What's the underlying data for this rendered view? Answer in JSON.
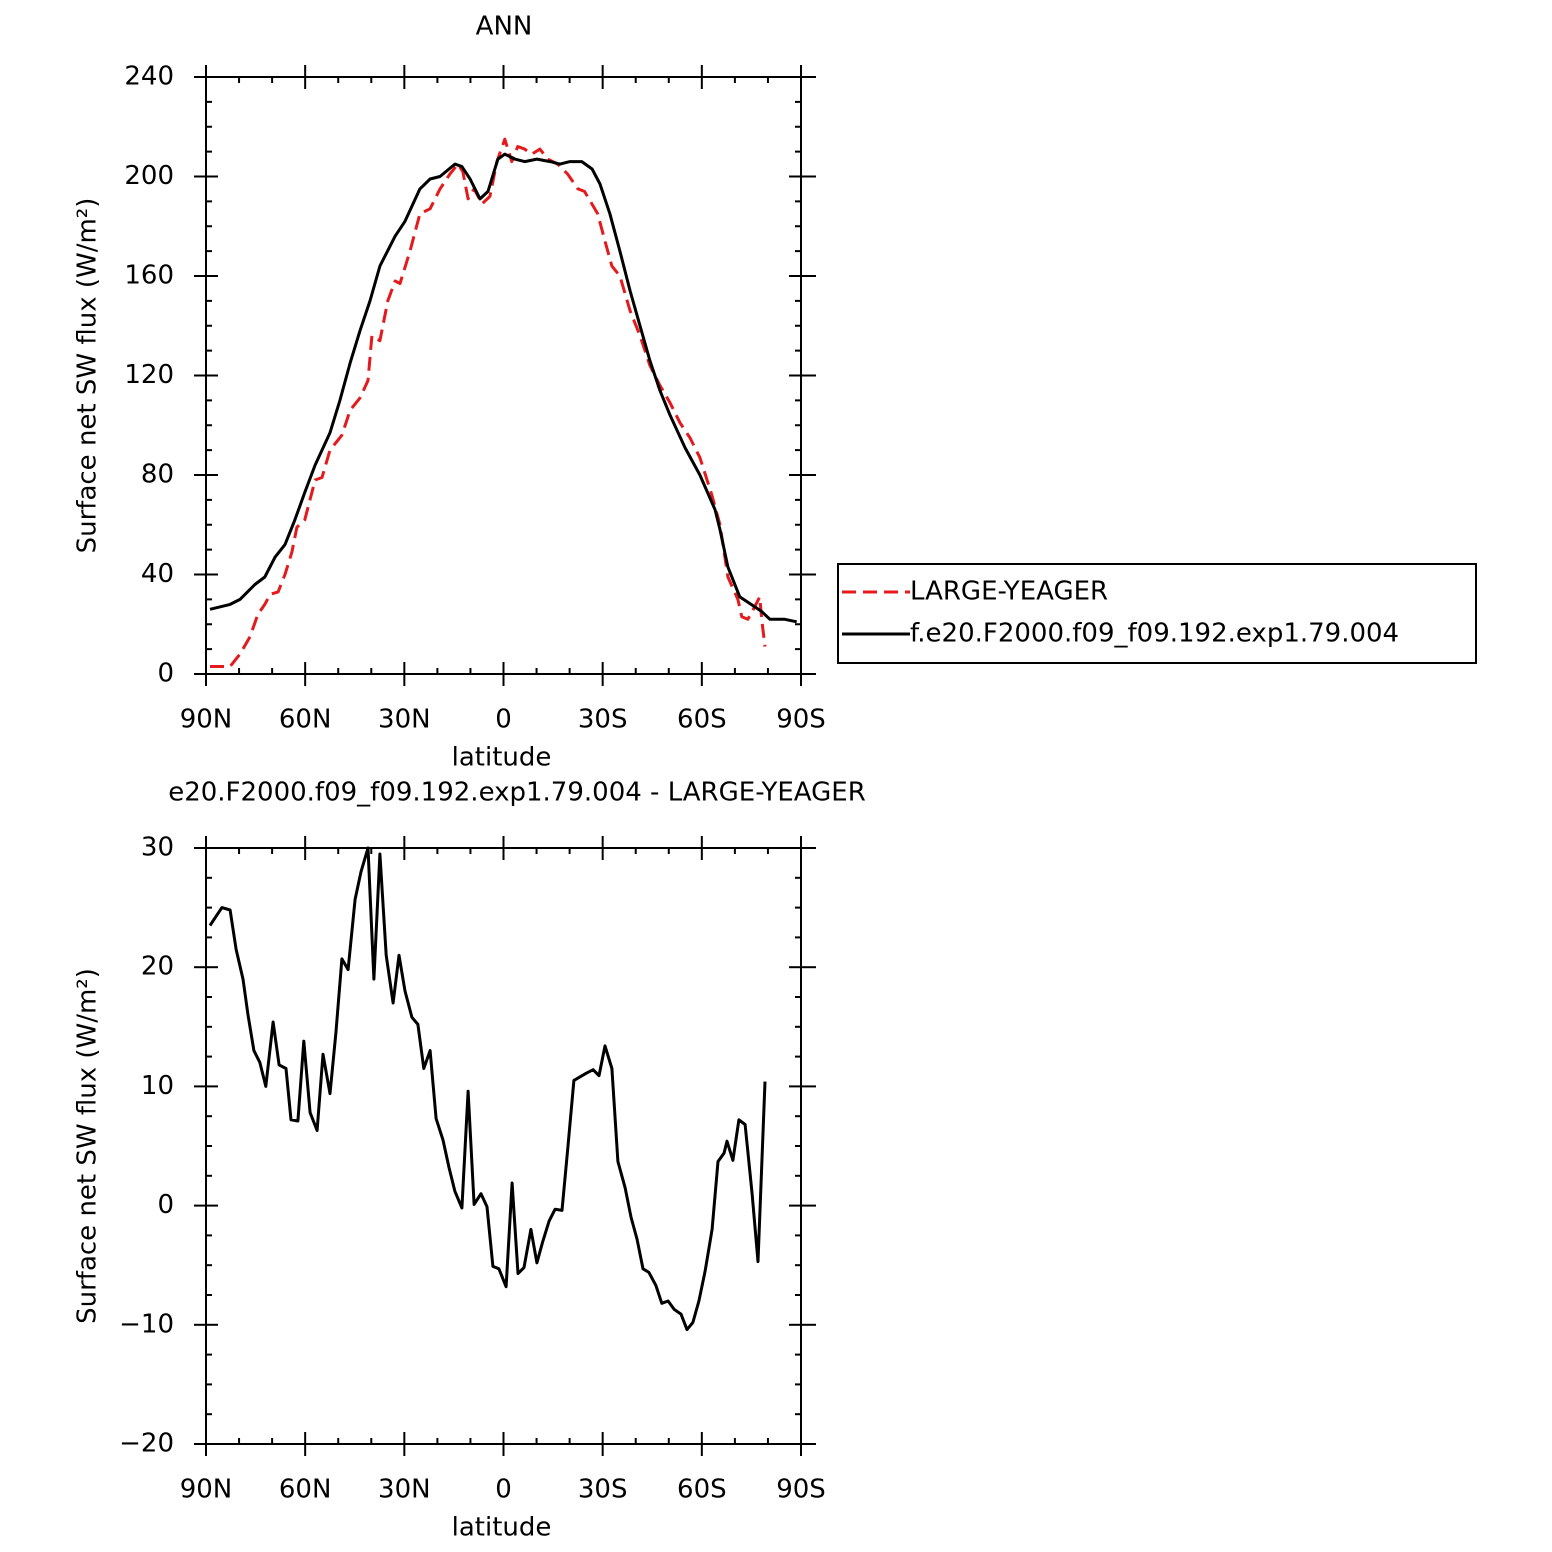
{
  "chart_data": [
    {
      "type": "line",
      "title": "ANN",
      "xlabel": "latitude",
      "ylabel": "Surface net SW flux (W/m²)",
      "xlim": [
        90,
        -90
      ],
      "xticks": [
        {
          "value": 90,
          "label": "90N"
        },
        {
          "value": 60,
          "label": "60N"
        },
        {
          "value": 30,
          "label": "30N"
        },
        0,
        {
          "value": -30,
          "label": "30S"
        },
        {
          "value": -60,
          "label": "60S"
        },
        {
          "value": -90,
          "label": "90S"
        }
      ],
      "ylim": [
        0,
        240
      ],
      "yticks": [
        0,
        40,
        80,
        120,
        160,
        200,
        240
      ],
      "legend": "right",
      "series": [
        {
          "name": "LARGE-YEAGER",
          "color": "#e41a1c",
          "dashed": true,
          "x": [
            88.8,
            82.7,
            79.7,
            76.7,
            74.3,
            72.2,
            70.6,
            68.2,
            66.1,
            64.0,
            62.5,
            60.1,
            57.0,
            54.9,
            52.5,
            48.9,
            46.4,
            43.4,
            41.0,
            39.8,
            37.4,
            35.0,
            32.8,
            31.3,
            28.3,
            25.3,
            22.2,
            19.2,
            16.2,
            13.8,
            12.3,
            10.7,
            8.9,
            6.5,
            4.1,
            2.0,
            -0.4,
            -2.5,
            -4.3,
            -6.4,
            -8.6,
            -11.0,
            -13.4,
            -16.4,
            -19.4,
            -22.5,
            -24.5,
            -28.5,
            -30.7,
            -32.8,
            -35.2,
            -38.3,
            -41.3,
            -44.3,
            -47.3,
            -50.4,
            -53.4,
            -56.4,
            -59.4,
            -63.0,
            -65.5,
            -67.9,
            -70.9,
            -72.1,
            -73.9,
            -76.0,
            -77.5,
            -78.2,
            -79.1
          ],
          "values": [
            3,
            3,
            8,
            15,
            24,
            28,
            32,
            33,
            40,
            49,
            59,
            62,
            78,
            79,
            90,
            96,
            106,
            111,
            118,
            136,
            134,
            150,
            158,
            157,
            170,
            185,
            187,
            195,
            201,
            205,
            202,
            191,
            195,
            189,
            192,
            206,
            215,
            206,
            212,
            211,
            209,
            211,
            207,
            205,
            201,
            195,
            194,
            185,
            174,
            164,
            160,
            146,
            136,
            124,
            116,
            109,
            101,
            95,
            87,
            72,
            60,
            39,
            30,
            23,
            22,
            27,
            31,
            21,
            11
          ]
        },
        {
          "name": "f.e20.F2000.f09_f09.192.exp1.79.004",
          "color": "#000000",
          "dashed": false,
          "x": [
            88.8,
            82.7,
            79.7,
            75.2,
            72.2,
            69.1,
            66.1,
            63.1,
            60.1,
            57.0,
            52.5,
            49.5,
            46.4,
            43.4,
            40.4,
            37.4,
            32.8,
            29.8,
            25.3,
            22.2,
            19.2,
            14.7,
            12.6,
            10.1,
            7.1,
            4.7,
            1.7,
            -0.4,
            -3.4,
            -6.4,
            -10.1,
            -14.1,
            -17.1,
            -20.1,
            -23.7,
            -26.8,
            -29.2,
            -32.2,
            -35.2,
            -38.3,
            -41.3,
            -44.3,
            -47.3,
            -50.4,
            -54.9,
            -59.4,
            -64.0,
            -65.5,
            -67.9,
            -71.5,
            -76.0,
            -78.2,
            -80.6,
            -85.1,
            -88.7
          ],
          "values": [
            26,
            28,
            30,
            36,
            39,
            47,
            52,
            62,
            73,
            84,
            97,
            110,
            125,
            138,
            150,
            164,
            176,
            182,
            195,
            199,
            200,
            205,
            204,
            199,
            191,
            194,
            207,
            209,
            207,
            206,
            207,
            206,
            205,
            206,
            206,
            203,
            197,
            185,
            170,
            154,
            140,
            126,
            114,
            104,
            91,
            80,
            66,
            58,
            43,
            31,
            27,
            25,
            22,
            22,
            21
          ]
        }
      ]
    },
    {
      "type": "line",
      "title": "e20.F2000.f09_f09.192.exp1.79.004 - LARGE-YEAGER",
      "xlabel": "latitude",
      "ylabel": "Surface net SW flux (W/m²)",
      "xlim": [
        90,
        -90
      ],
      "xticks": [
        {
          "value": 90,
          "label": "90N"
        },
        {
          "value": 60,
          "label": "60N"
        },
        {
          "value": 30,
          "label": "30N"
        },
        0,
        {
          "value": -30,
          "label": "30S"
        },
        {
          "value": -60,
          "label": "60S"
        },
        {
          "value": -90,
          "label": "90S"
        }
      ],
      "ylim": [
        -20,
        30
      ],
      "yticks": [
        {
          "value": -20,
          "label": "−20"
        },
        {
          "value": -10,
          "label": "−10"
        },
        0,
        10,
        20,
        30
      ],
      "series": [
        {
          "color": "#000000",
          "dashed": false,
          "x": [
            88.8,
            85.2,
            82.7,
            80.9,
            78.8,
            77.3,
            75.5,
            73.7,
            71.9,
            69.7,
            67.9,
            65.8,
            64.3,
            62.2,
            60.4,
            58.5,
            56.4,
            54.6,
            52.5,
            50.7,
            48.9,
            47.0,
            44.9,
            43.1,
            41.0,
            39.2,
            37.4,
            35.5,
            33.4,
            31.6,
            29.8,
            27.7,
            25.9,
            24.1,
            22.2,
            20.4,
            18.3,
            16.5,
            14.7,
            12.6,
            10.7,
            8.9,
            6.8,
            5.0,
            3.2,
            1.4,
            -0.8,
            -2.6,
            -4.4,
            -6.2,
            -8.3,
            -10.1,
            -11.9,
            -13.8,
            -15.6,
            -17.7,
            -19.5,
            -21.3,
            -23.1,
            -25.0,
            -27.1,
            -28.9,
            -30.7,
            -32.8,
            -34.6,
            -36.8,
            -38.6,
            -40.4,
            -42.2,
            -44.0,
            -46.1,
            -47.9,
            -49.8,
            -51.6,
            -53.7,
            -55.5,
            -57.3,
            -59.1,
            -61.0,
            -63.1,
            -64.9,
            -66.7,
            -67.6,
            -69.4,
            -71.2,
            -73.1,
            -75.2,
            -77.0,
            -79.1
          ],
          "values": [
            23.5,
            25,
            24.8,
            21.5,
            19,
            16,
            13,
            12,
            10,
            15.4,
            11.8,
            11.5,
            7.2,
            7.1,
            13.8,
            7.8,
            6.3,
            12.7,
            9.4,
            14.5,
            20.7,
            19.8,
            25.7,
            28,
            30,
            19,
            29.5,
            21,
            17,
            21,
            18,
            15.8,
            15.2,
            11.5,
            13,
            7.3,
            5.5,
            3.2,
            1.2,
            -0.2,
            9.6,
            0.1,
            1,
            -0.1,
            -5.1,
            -5.3,
            -6.8,
            1.9,
            -5.7,
            -5.2,
            -2,
            -4.8,
            -3,
            -1.3,
            -0.3,
            -0.4,
            5,
            10.5,
            10.8,
            11.1,
            11.4,
            10.9,
            13.4,
            11.5,
            3.7,
            1.5,
            -1,
            -2.8,
            -5.3,
            -5.6,
            -6.7,
            -8.2,
            -8,
            -8.7,
            -9.1,
            -10.4,
            -9.8,
            -8,
            -5.5,
            -2,
            3.7,
            4.4,
            5.4,
            3.8,
            7.2,
            6.8,
            1,
            -4.7,
            10.4
          ]
        }
      ]
    }
  ]
}
